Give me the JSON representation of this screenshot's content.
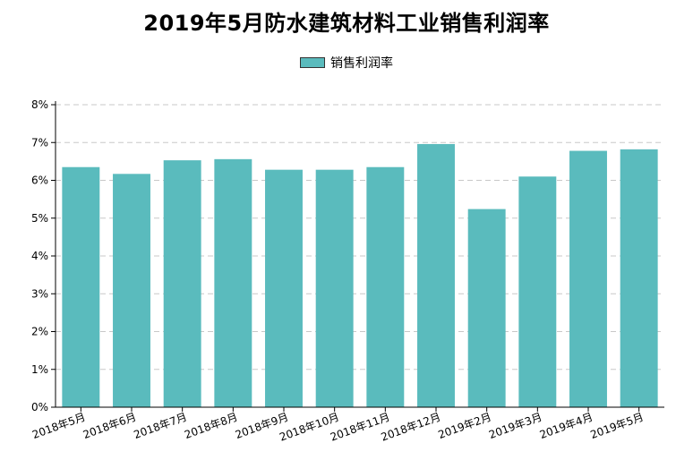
{
  "chart_data": {
    "type": "bar",
    "title": "2019年5月防水建筑材料工业销售利润率",
    "legend": {
      "position": "top-center"
    },
    "series": [
      {
        "name": "销售利润率",
        "color": "#5abbbd",
        "values": [
          6.35,
          6.17,
          6.53,
          6.56,
          6.28,
          6.28,
          6.35,
          6.96,
          5.24,
          6.1,
          6.78,
          6.82
        ]
      }
    ],
    "categories": [
      "2018年5月",
      "2018年6月",
      "2018年7月",
      "2018年8月",
      "2018年9月",
      "2018年10月",
      "2018年11月",
      "2018年12月",
      "2019年2月",
      "2019年3月",
      "2019年4月",
      "2019年5月"
    ],
    "y_ticks": [
      "0%",
      "1%",
      "2%",
      "3%",
      "4%",
      "5%",
      "6%",
      "7%",
      "8%"
    ],
    "ylim": [
      0,
      8
    ],
    "grid": true
  }
}
